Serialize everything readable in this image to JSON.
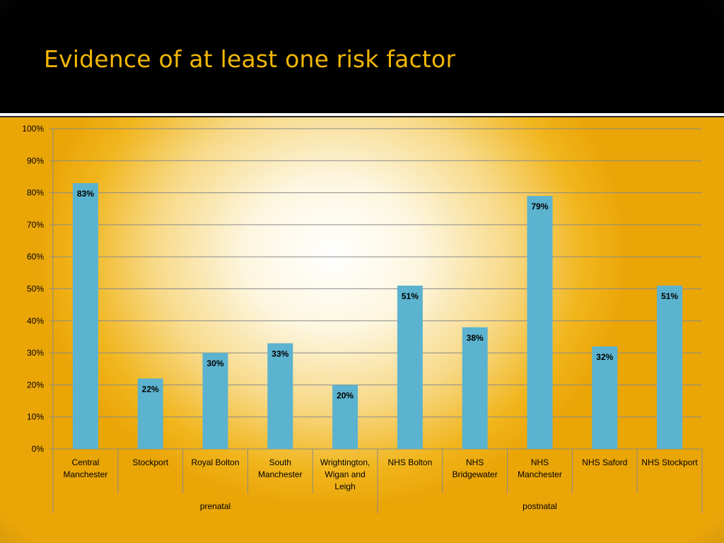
{
  "slide": {
    "title": "Evidence of at least one risk factor",
    "title_color": "#f2b705"
  },
  "chart_data": {
    "type": "bar",
    "title": "",
    "xlabel": "",
    "ylabel": "",
    "ylim": [
      0,
      100
    ],
    "y_tick_step": 10,
    "y_tick_suffix": "%",
    "grid": true,
    "bar_color": "#5bb3cf",
    "categories": [
      [
        "Central",
        "Manchester"
      ],
      [
        "Stockport"
      ],
      [
        "Royal Bolton"
      ],
      [
        "South",
        "Manchester"
      ],
      [
        "Wrightington,",
        "Wigan and",
        "Leigh"
      ],
      [
        "NHS Bolton"
      ],
      [
        "NHS",
        "Bridgewater"
      ],
      [
        "NHS",
        "Manchester"
      ],
      [
        "NHS Saford"
      ],
      [
        "NHS Stockport"
      ]
    ],
    "values": [
      83,
      22,
      30,
      33,
      20,
      51,
      38,
      79,
      32,
      51
    ],
    "data_labels": [
      "83%",
      "22%",
      "30%",
      "33%",
      "20%",
      "51%",
      "38%",
      "79%",
      "32%",
      "51%"
    ],
    "groups": [
      {
        "label": "prenatal",
        "count": 5
      },
      {
        "label": "postnatal",
        "count": 5
      }
    ]
  }
}
